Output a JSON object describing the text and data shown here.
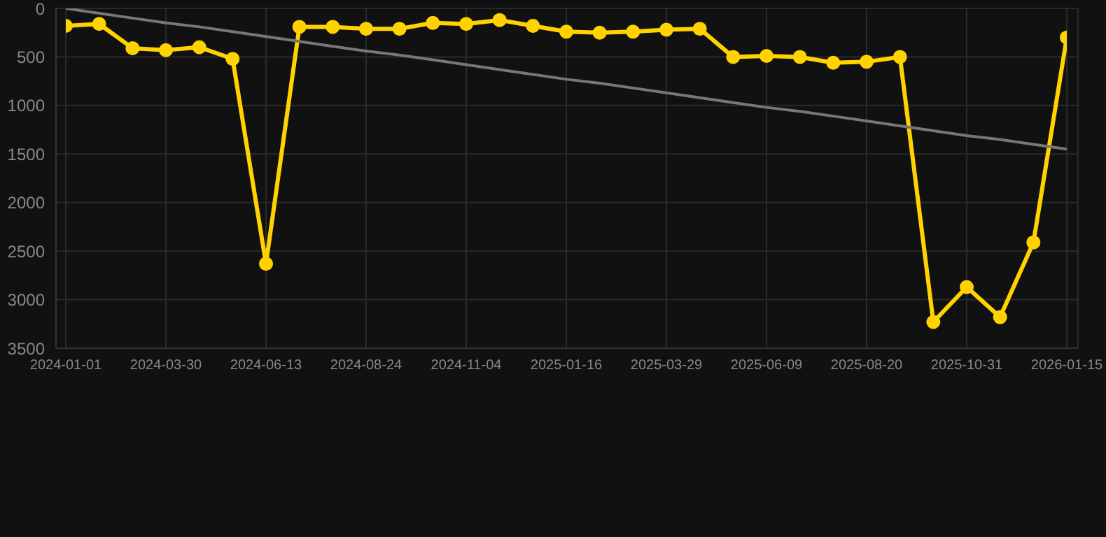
{
  "chart_data": {
    "type": "line",
    "categories": [
      "2024-01-01",
      null,
      null,
      "2024-03-30",
      null,
      null,
      "2024-06-13",
      null,
      null,
      "2024-08-24",
      null,
      null,
      "2024-11-04",
      null,
      null,
      "2025-01-16",
      null,
      null,
      "2025-03-29",
      null,
      null,
      "2025-06-09",
      null,
      null,
      "2025-08-20",
      null,
      null,
      "2025-10-31",
      null,
      null,
      "2026-01-15"
    ],
    "series": [
      {
        "color": "#ffd200",
        "values": [
          180,
          160,
          410,
          430,
          400,
          520,
          2630,
          190,
          190,
          210,
          210,
          150,
          160,
          120,
          180,
          240,
          250,
          240,
          220,
          210,
          500,
          490,
          500,
          560,
          550,
          500,
          3230,
          2870,
          3180,
          2410,
          300
        ],
        "marker": "circle"
      },
      {
        "color": "#777777",
        "values": [
          0,
          50,
          100,
          150,
          190,
          240,
          290,
          340,
          390,
          440,
          480,
          530,
          580,
          630,
          680,
          730,
          770,
          820,
          870,
          920,
          970,
          1020,
          1060,
          1110,
          1160,
          1210,
          1260,
          1310,
          1350,
          1400,
          1450
        ],
        "marker": "none"
      }
    ],
    "ylim": [
      3500,
      0
    ],
    "yticks": [
      0,
      500,
      1000,
      1500,
      2000,
      2500,
      3000,
      3500
    ],
    "grid": true,
    "legend": false,
    "line_style": "solid"
  }
}
